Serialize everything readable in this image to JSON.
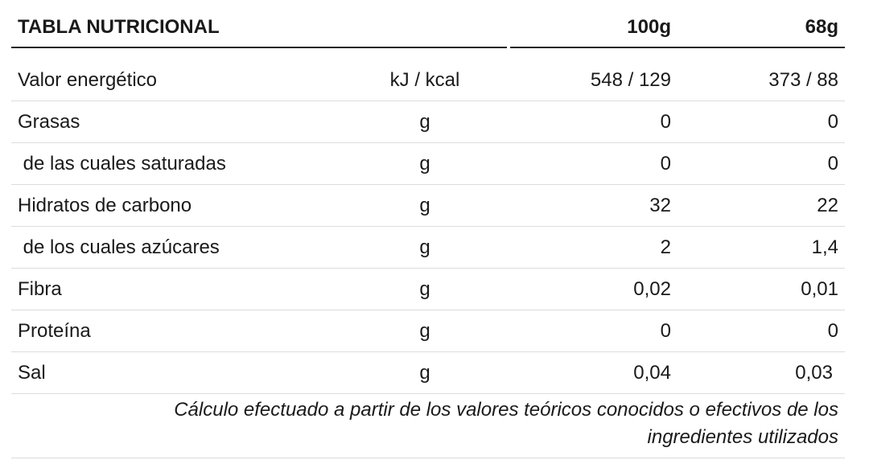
{
  "table": {
    "title": "TABLA NUTRICIONAL",
    "col_100g": "100g",
    "col_68g": "68g",
    "rows": [
      {
        "name": " Valor energético",
        "unit": "kJ / kcal",
        "v100": "548 / 129",
        "v68": "373 / 88"
      },
      {
        "name": "Grasas",
        "unit": "g",
        "v100": "0",
        "v68": "0"
      },
      {
        "name": " de las cuales saturadas",
        "unit": "g",
        "v100": "0",
        "v68": "0"
      },
      {
        "name": "Hidratos de carbono",
        "unit": "g",
        "v100": "32",
        "v68": "22"
      },
      {
        "name": " de los cuales azúcares",
        "unit": "g",
        "v100": "2",
        "v68": "1,4"
      },
      {
        "name": "Fibra",
        "unit": "g",
        "v100": "0,02",
        "v68": "0,01"
      },
      {
        "name": "Proteína",
        "unit": "g",
        "v100": "0",
        "v68": "0"
      },
      {
        "name": "Sal",
        "unit": "g",
        "v100": "0,04",
        "v68": "0,03"
      }
    ],
    "footnote_line1": "Cálculo efectuado a partir de los valores teóricos conocidos o efectivos de los",
    "footnote_line2": "ingredientes utilizados"
  }
}
